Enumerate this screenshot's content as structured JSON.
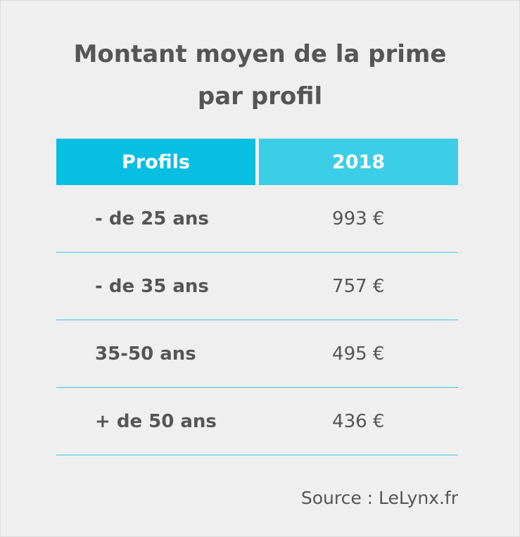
{
  "header": {
    "title": "Montant moyen de la prime par profil"
  },
  "table": {
    "columns": [
      "Profils",
      "2018"
    ],
    "rows": [
      [
        "- de 25 ans",
        "993 €"
      ],
      [
        "- de 35 ans",
        "757 €"
      ],
      [
        "35-50 ans",
        "495 €"
      ],
      [
        "+ de 50 ans",
        "436 €"
      ]
    ]
  },
  "footer": {
    "source": "Source : LeLynx.fr"
  }
}
